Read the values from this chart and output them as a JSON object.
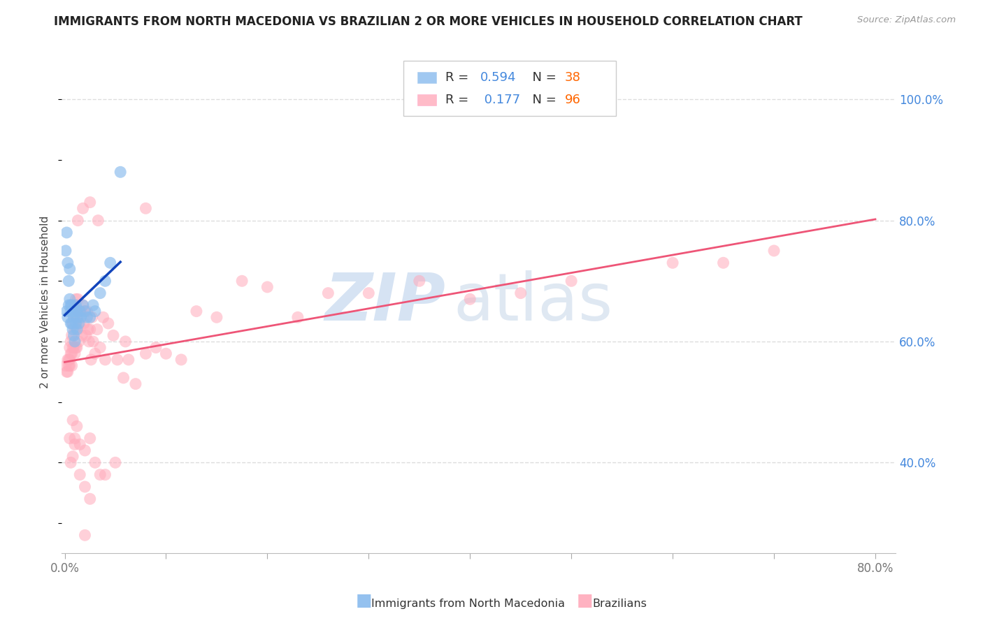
{
  "title": "IMMIGRANTS FROM NORTH MACEDONIA VS BRAZILIAN 2 OR MORE VEHICLES IN HOUSEHOLD CORRELATION CHART",
  "source": "Source: ZipAtlas.com",
  "ylabel": "2 or more Vehicles in Household",
  "xlim": [
    -0.003,
    0.82
  ],
  "ylim": [
    0.25,
    1.08
  ],
  "xtick_positions": [
    0.0,
    0.1,
    0.2,
    0.3,
    0.4,
    0.5,
    0.6,
    0.7,
    0.8
  ],
  "xtick_labels": [
    "0.0%",
    "",
    "",
    "",
    "",
    "",
    "",
    "",
    "80.0%"
  ],
  "ytick_positions": [
    0.4,
    0.6,
    0.8,
    1.0
  ],
  "ytick_labels": [
    "40.0%",
    "60.0%",
    "80.0%",
    "100.0%"
  ],
  "right_tick_color": "#4488dd",
  "blue_dot_color": "#88bbee",
  "pink_dot_color": "#ffaabb",
  "blue_line_color": "#1144bb",
  "pink_line_color": "#ee5577",
  "dash_color": "#bbccdd",
  "grid_color": "#dddddd",
  "r_text_color": "#4488dd",
  "n_text_color": "#ff6600",
  "legend_blue_r": "0.594",
  "legend_blue_n": "38",
  "legend_pink_r": "0.177",
  "legend_pink_n": "96",
  "blue_scatter_x": [
    0.001,
    0.002,
    0.002,
    0.003,
    0.003,
    0.004,
    0.004,
    0.005,
    0.005,
    0.006,
    0.006,
    0.006,
    0.007,
    0.007,
    0.008,
    0.008,
    0.009,
    0.009,
    0.01,
    0.01,
    0.011,
    0.011,
    0.012,
    0.012,
    0.013,
    0.014,
    0.015,
    0.016,
    0.018,
    0.02,
    0.022,
    0.025,
    0.028,
    0.03,
    0.035,
    0.04,
    0.045,
    0.055
  ],
  "blue_scatter_y": [
    0.75,
    0.78,
    0.65,
    0.73,
    0.64,
    0.7,
    0.66,
    0.72,
    0.67,
    0.66,
    0.63,
    0.65,
    0.66,
    0.63,
    0.65,
    0.62,
    0.64,
    0.61,
    0.65,
    0.6,
    0.66,
    0.63,
    0.65,
    0.62,
    0.64,
    0.63,
    0.65,
    0.64,
    0.66,
    0.65,
    0.64,
    0.64,
    0.66,
    0.65,
    0.68,
    0.7,
    0.73,
    0.88
  ],
  "pink_scatter_x": [
    0.001,
    0.002,
    0.003,
    0.003,
    0.004,
    0.004,
    0.005,
    0.005,
    0.005,
    0.006,
    0.006,
    0.007,
    0.007,
    0.007,
    0.008,
    0.008,
    0.009,
    0.009,
    0.01,
    0.01,
    0.01,
    0.011,
    0.011,
    0.012,
    0.012,
    0.013,
    0.013,
    0.014,
    0.014,
    0.015,
    0.016,
    0.017,
    0.018,
    0.019,
    0.02,
    0.021,
    0.022,
    0.023,
    0.024,
    0.025,
    0.026,
    0.027,
    0.028,
    0.03,
    0.032,
    0.035,
    0.038,
    0.04,
    0.043,
    0.048,
    0.052,
    0.058,
    0.063,
    0.07,
    0.08,
    0.09,
    0.1,
    0.115,
    0.13,
    0.15,
    0.175,
    0.2,
    0.23,
    0.26,
    0.3,
    0.35,
    0.4,
    0.45,
    0.5,
    0.6,
    0.65,
    0.7,
    0.013,
    0.018,
    0.025,
    0.033,
    0.008,
    0.01,
    0.012,
    0.015,
    0.02,
    0.025,
    0.03,
    0.04,
    0.005,
    0.006,
    0.008,
    0.01,
    0.015,
    0.02,
    0.025,
    0.035,
    0.05,
    0.06,
    0.08,
    0.02
  ],
  "pink_scatter_y": [
    0.56,
    0.55,
    0.57,
    0.55,
    0.57,
    0.56,
    0.59,
    0.57,
    0.56,
    0.6,
    0.58,
    0.61,
    0.58,
    0.56,
    0.63,
    0.59,
    0.64,
    0.59,
    0.66,
    0.62,
    0.58,
    0.67,
    0.59,
    0.64,
    0.59,
    0.67,
    0.62,
    0.65,
    0.6,
    0.63,
    0.65,
    0.61,
    0.66,
    0.63,
    0.65,
    0.61,
    0.65,
    0.62,
    0.6,
    0.62,
    0.57,
    0.64,
    0.6,
    0.58,
    0.62,
    0.59,
    0.64,
    0.57,
    0.63,
    0.61,
    0.57,
    0.54,
    0.57,
    0.53,
    0.58,
    0.59,
    0.58,
    0.57,
    0.65,
    0.64,
    0.7,
    0.69,
    0.64,
    0.68,
    0.68,
    0.7,
    0.67,
    0.68,
    0.7,
    0.73,
    0.73,
    0.75,
    0.8,
    0.82,
    0.83,
    0.8,
    0.47,
    0.44,
    0.46,
    0.43,
    0.42,
    0.44,
    0.4,
    0.38,
    0.44,
    0.4,
    0.41,
    0.43,
    0.38,
    0.36,
    0.34,
    0.38,
    0.4,
    0.6,
    0.82,
    0.28
  ]
}
